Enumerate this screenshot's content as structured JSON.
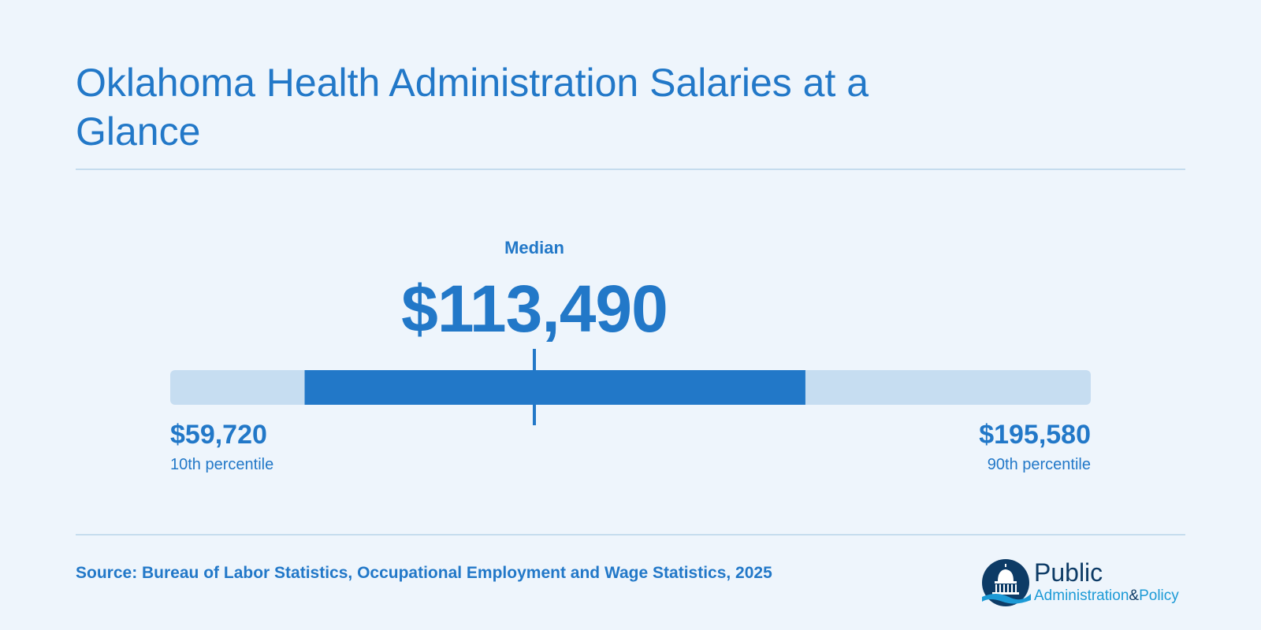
{
  "title": "Oklahoma Health Administration Salaries at a Glance",
  "chart_data": {
    "type": "bar",
    "min": 0,
    "max": 0,
    "markers": {
      "p10": {
        "value": 59720,
        "display": "$59,720",
        "label": "10th percentile"
      },
      "median": {
        "value": 113490,
        "display": "$113,490",
        "label": "Median"
      },
      "p90": {
        "value": 195580,
        "display": "$195,580",
        "label": "90th percentile"
      }
    },
    "colors": {
      "track": "#c6ddf1",
      "fill": "#2278c8",
      "marker": "#2278c8"
    }
  },
  "source": "Source: Bureau of Labor Statistics, Occupational Employment and Wage Statistics, 2025",
  "logo": {
    "line1": "Public",
    "line2a": "Administration",
    "amp": "&",
    "line2b": "Policy",
    "icon": "capitol-dome-icon"
  }
}
